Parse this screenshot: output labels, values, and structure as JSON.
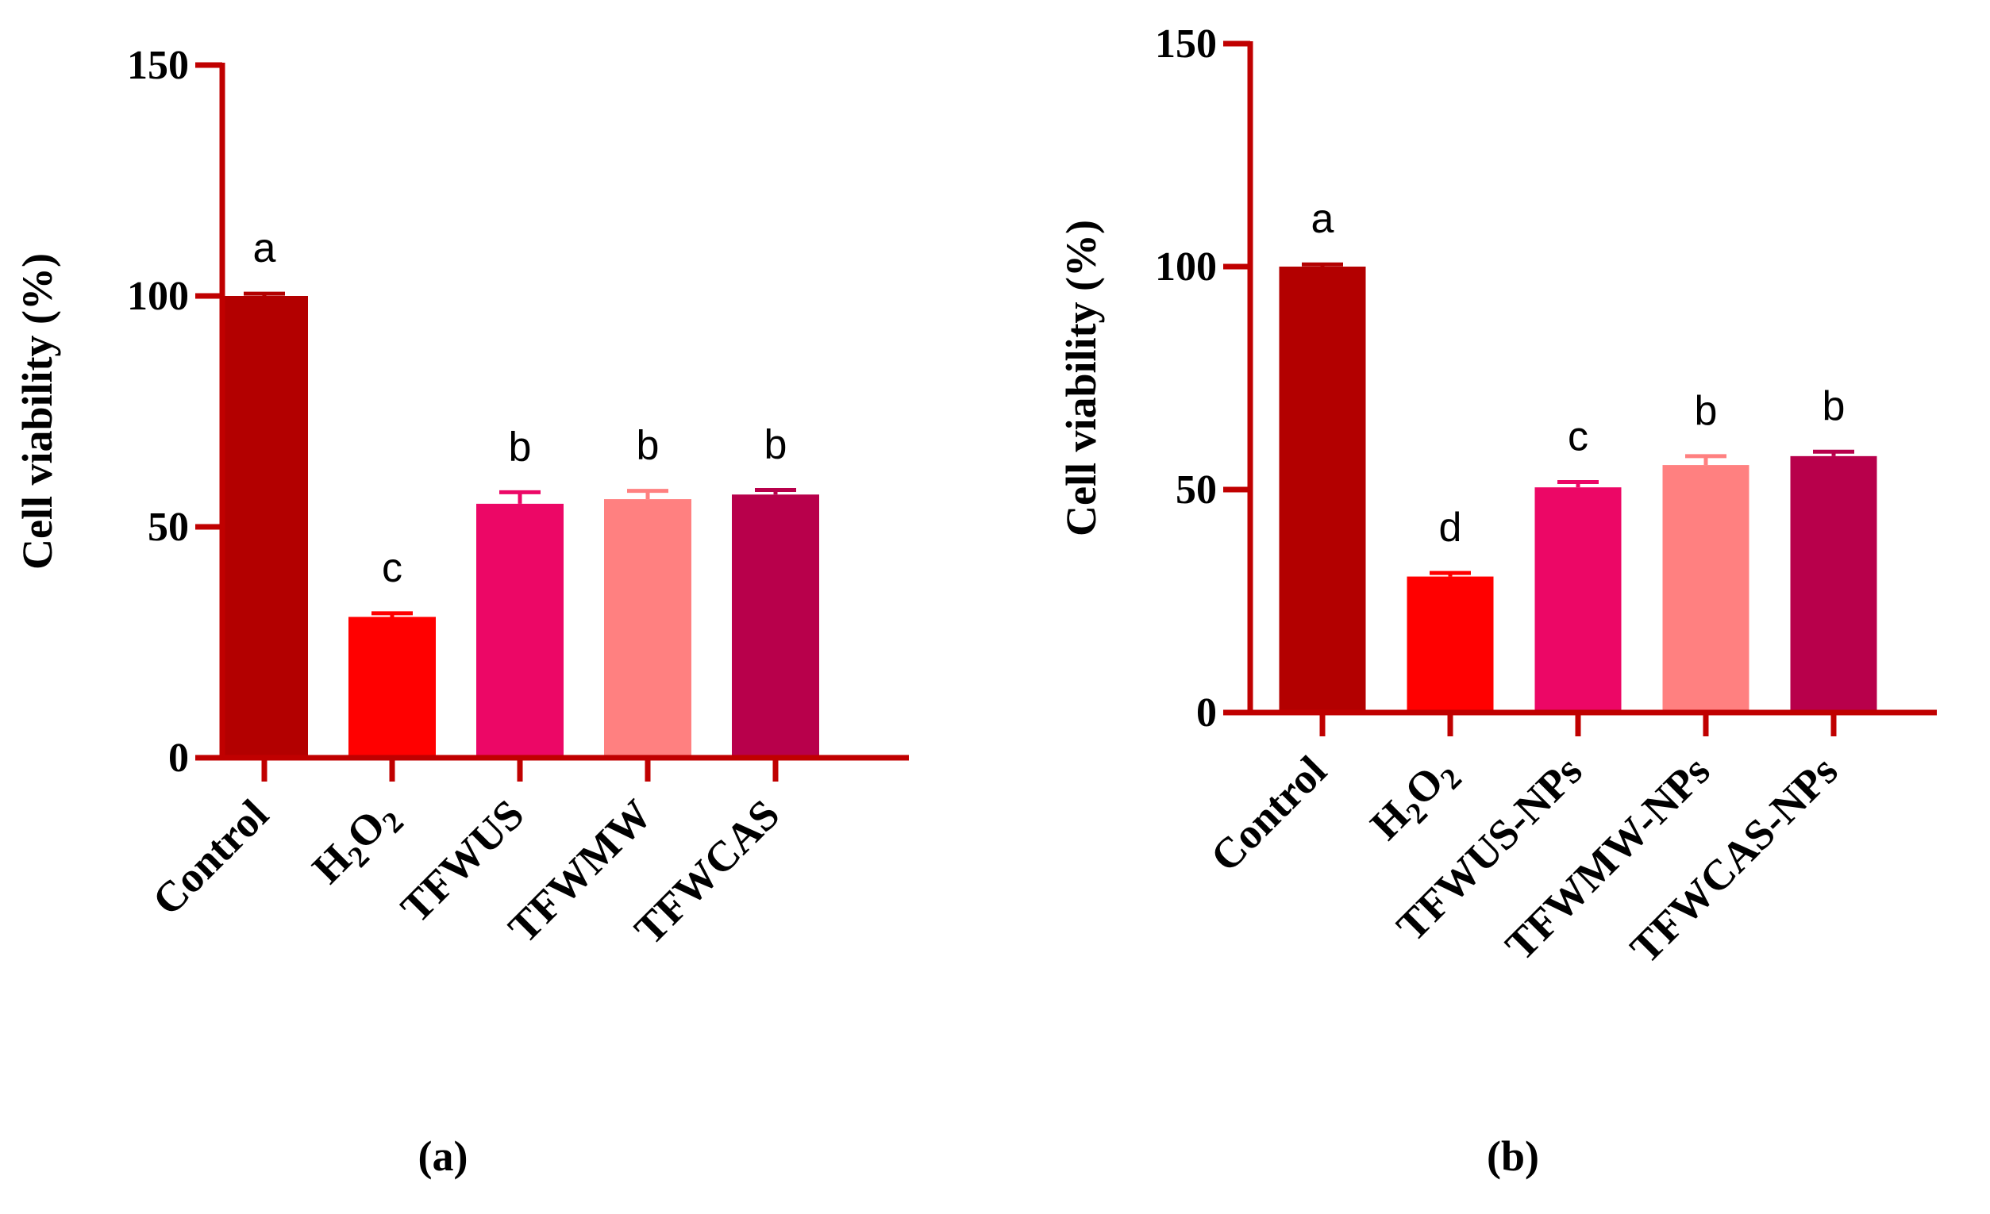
{
  "colors": {
    "axis": "#c00000",
    "bars": [
      "#b30000",
      "#ff0000",
      "#ec0766",
      "#ff8080",
      "#b8004b"
    ]
  },
  "chart_data": [
    {
      "type": "bar",
      "panel_label": "(a)",
      "ylabel": "Cell viability (%)",
      "xlabel": "",
      "ylim": [
        0,
        150
      ],
      "yticks": [
        "0",
        "50",
        "100",
        "150"
      ],
      "categories": [
        "Control",
        "H2O2",
        "TFWUS",
        "TFWMW",
        "TFWCAS"
      ],
      "values": [
        100,
        30.5,
        55,
        56,
        57
      ],
      "errors": [
        0.5,
        0.8,
        2.5,
        1.8,
        1.0
      ],
      "significance": [
        "a",
        "c",
        "b",
        "b",
        "b"
      ]
    },
    {
      "type": "bar",
      "panel_label": "(b)",
      "ylabel": "Cell viability (%)",
      "xlabel": "",
      "ylim": [
        0,
        150
      ],
      "yticks": [
        "0",
        "50",
        "100",
        "150"
      ],
      "categories": [
        "Control",
        "H2O2",
        "TFWUS-NPs",
        "TFWMW-NPs",
        "TFWCAS-NPs"
      ],
      "values": [
        100,
        30.5,
        50.5,
        55.5,
        57.5
      ],
      "errors": [
        0.5,
        0.8,
        1.2,
        2.0,
        1.0
      ],
      "significance": [
        "a",
        "d",
        "c",
        "b",
        "b"
      ]
    }
  ]
}
